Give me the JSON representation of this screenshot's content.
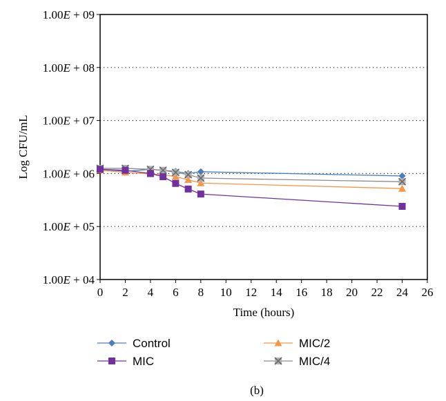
{
  "chart_data": {
    "type": "line",
    "title": "",
    "xlabel": "Time (hours)",
    "ylabel": "Log CFU/mL",
    "xlim": [
      0,
      26
    ],
    "x_ticks": [
      "0",
      "2",
      "4",
      "6",
      "8",
      "10",
      "12",
      "14",
      "16",
      "18",
      "20",
      "22",
      "24",
      "26"
    ],
    "y_scale": "log",
    "ylim": [
      10000,
      1000000000
    ],
    "y_ticks": [
      {
        "value": 10000,
        "mantissa": "1.00",
        "exp": "+ 04"
      },
      {
        "value": 100000,
        "mantissa": "1.00",
        "exp": "+ 05"
      },
      {
        "value": 1000000,
        "mantissa": "1.00",
        "exp": "+ 06"
      },
      {
        "value": 10000000,
        "mantissa": "1.00",
        "exp": "+ 07"
      },
      {
        "value": 100000000,
        "mantissa": "1.00",
        "exp": "+ 08"
      },
      {
        "value": 1000000000,
        "mantissa": "1.00",
        "exp": "+ 09"
      }
    ],
    "grid": "horizontal dotted",
    "legend_position": "bottom",
    "series": [
      {
        "name": "Control",
        "color": "#4a7ebb",
        "marker": "diamond",
        "points": [
          [
            0,
            1200000
          ],
          [
            2,
            1100000
          ],
          [
            4,
            1200000
          ],
          [
            5,
            1150000
          ],
          [
            6,
            1100000
          ],
          [
            7,
            1000000
          ],
          [
            8,
            1080000
          ],
          [
            24,
            900000
          ]
        ]
      },
      {
        "name": "MIC",
        "color": "#7030a0",
        "marker": "square",
        "points": [
          [
            0,
            1200000
          ],
          [
            2,
            1150000
          ],
          [
            4,
            1000000
          ],
          [
            5,
            870000
          ],
          [
            6,
            650000
          ],
          [
            7,
            510000
          ],
          [
            8,
            410000
          ],
          [
            24,
            240000
          ]
        ]
      },
      {
        "name": "MIC/2",
        "color": "#f79646",
        "marker": "triangle",
        "points": [
          [
            0,
            1150000
          ],
          [
            2,
            1050000
          ],
          [
            4,
            980000
          ],
          [
            5,
            950000
          ],
          [
            6,
            870000
          ],
          [
            7,
            760000
          ],
          [
            8,
            660000
          ],
          [
            24,
            520000
          ]
        ]
      },
      {
        "name": "MIC/4",
        "color": "#8c8c8c",
        "marker": "x",
        "points": [
          [
            0,
            1250000
          ],
          [
            2,
            1250000
          ],
          [
            4,
            1200000
          ],
          [
            5,
            1150000
          ],
          [
            6,
            1050000
          ],
          [
            7,
            950000
          ],
          [
            8,
            820000
          ],
          [
            24,
            700000
          ]
        ]
      }
    ],
    "caption": "(b)"
  }
}
